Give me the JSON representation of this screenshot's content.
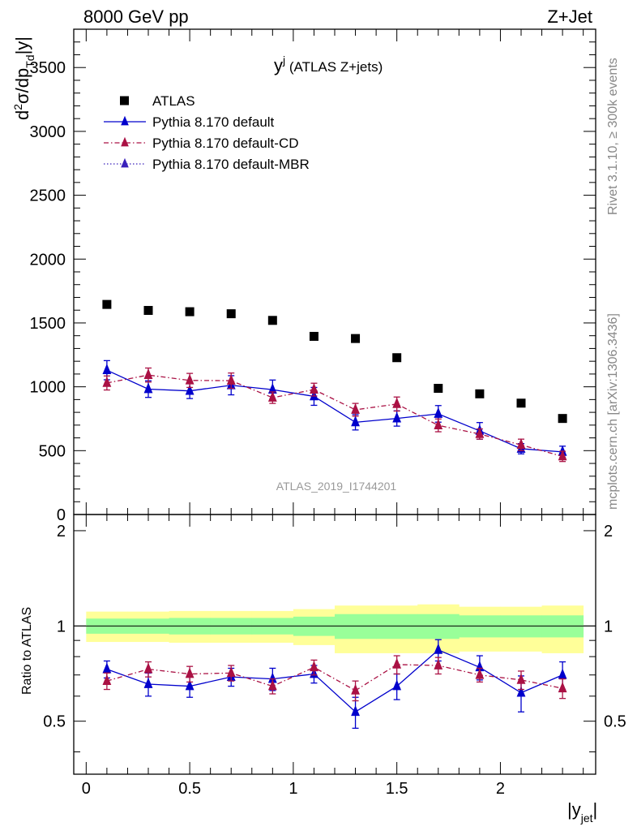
{
  "header": {
    "left": "8000 GeV pp",
    "right": "Z+Jet"
  },
  "side": {
    "rivet": "Rivet 3.1.10, ≥ 300k events",
    "mcplots": "mcplots.cern.ch [arXiv:1306.3436]"
  },
  "watermark": "ATLAS_2019_I1744201",
  "chart_data": [
    {
      "type": "scatter",
      "title": "y^j (ATLAS Z+jets)",
      "title_main": "y",
      "title_sup": "j",
      "title_rest": " (ATLAS Z+jets)",
      "ylabel": "d²σ/dp_Td|y|",
      "ylabel_parts": {
        "d": "d",
        "sup2": "2",
        "sigma": "σ/dp",
        "subT": "T",
        "subd": "d",
        "abs": "|y|"
      },
      "xlim": [
        -0.06,
        2.46
      ],
      "ylim": [
        0,
        3800
      ],
      "yticks": [
        0,
        500,
        1000,
        1500,
        2000,
        2500,
        3000,
        3500
      ],
      "ytick_labels": [
        "0",
        "500",
        "1000",
        "1500",
        "2000",
        "2500",
        "3000",
        "3500"
      ],
      "legend_position": "top-left",
      "x": [
        0.1,
        0.3,
        0.5,
        0.7,
        0.9,
        1.1,
        1.3,
        1.5,
        1.7,
        1.9,
        2.1,
        2.3
      ],
      "series": [
        {
          "name": "ATLAS",
          "color": "#000000",
          "marker": "square",
          "values": [
            1645,
            1598,
            1588,
            1572,
            1520,
            1395,
            1378,
            1228,
            988,
            945,
            872,
            752
          ]
        },
        {
          "name": "Pythia 8.170 default",
          "color": "#0000cc",
          "marker": "triangle",
          "line": "solid",
          "values": [
            1130,
            982,
            968,
            1012,
            978,
            925,
            722,
            752,
            788,
            655,
            515,
            490
          ],
          "errors": [
            75,
            65,
            60,
            75,
            75,
            70,
            60,
            60,
            65,
            65,
            40,
            45
          ]
        },
        {
          "name": "Pythia 8.170 default-CD",
          "color": "#aa1144",
          "marker": "triangle",
          "line": "dashdot",
          "values": [
            1030,
            1092,
            1050,
            1048,
            915,
            978,
            820,
            865,
            698,
            630,
            545,
            455
          ],
          "errors": [
            55,
            55,
            55,
            60,
            45,
            50,
            50,
            55,
            50,
            40,
            45,
            40
          ]
        },
        {
          "name": "Pythia 8.170 default-MBR",
          "color": "#3a22bb",
          "marker": "triangle",
          "line": "dotted",
          "values": [],
          "errors": []
        }
      ]
    },
    {
      "type": "scatter",
      "xlabel": "|y_jet|",
      "xlabel_parts": {
        "main": "|y",
        "sub": "jet",
        "end": "|"
      },
      "ylabel": "Ratio to ATLAS",
      "xlim": [
        -0.06,
        2.46
      ],
      "ylim": [
        0.34,
        2.25
      ],
      "yticks": [
        0.5,
        1,
        2
      ],
      "ytick_labels": [
        "0.5",
        "1",
        "2"
      ],
      "xticks": [
        0,
        0.5,
        1,
        1.5,
        2
      ],
      "xtick_labels": [
        "0",
        "0.5",
        "1",
        "1.5",
        "2"
      ],
      "x": [
        0.1,
        0.3,
        0.5,
        0.7,
        0.9,
        1.1,
        1.3,
        1.5,
        1.7,
        1.9,
        2.1,
        2.3
      ],
      "bins": [
        0,
        0.2,
        0.4,
        0.6,
        0.8,
        1.0,
        1.2,
        1.4,
        1.6,
        1.8,
        2.0,
        2.2,
        2.4
      ],
      "band_stat": [
        [
          0.945,
          1.055
        ],
        [
          0.945,
          1.055
        ],
        [
          0.94,
          1.06
        ],
        [
          0.94,
          1.06
        ],
        [
          0.94,
          1.06
        ],
        [
          0.93,
          1.07
        ],
        [
          0.91,
          1.09
        ],
        [
          0.91,
          1.09
        ],
        [
          0.91,
          1.09
        ],
        [
          0.92,
          1.08
        ],
        [
          0.92,
          1.08
        ],
        [
          0.92,
          1.08
        ]
      ],
      "band_total": [
        [
          0.89,
          1.11
        ],
        [
          0.89,
          1.11
        ],
        [
          0.885,
          1.115
        ],
        [
          0.885,
          1.115
        ],
        [
          0.885,
          1.115
        ],
        [
          0.87,
          1.13
        ],
        [
          0.82,
          1.16
        ],
        [
          0.82,
          1.16
        ],
        [
          0.82,
          1.17
        ],
        [
          0.83,
          1.15
        ],
        [
          0.83,
          1.15
        ],
        [
          0.82,
          1.16
        ]
      ],
      "series": [
        {
          "name": "Pythia 8.170 default",
          "color": "#0000cc",
          "marker": "triangle",
          "line": "solid",
          "values": [
            0.73,
            0.655,
            0.645,
            0.69,
            0.68,
            0.705,
            0.535,
            0.645,
            0.84,
            0.74,
            0.615,
            0.7
          ],
          "errors": [
            0.045,
            0.055,
            0.05,
            0.045,
            0.055,
            0.045,
            0.06,
            0.06,
            0.065,
            0.065,
            0.08,
            0.07
          ]
        },
        {
          "name": "Pythia 8.170 default-CD",
          "color": "#aa1144",
          "marker": "triangle",
          "line": "dashdot",
          "values": [
            0.67,
            0.73,
            0.705,
            0.71,
            0.645,
            0.74,
            0.625,
            0.755,
            0.75,
            0.7,
            0.675,
            0.635
          ],
          "errors": [
            0.04,
            0.04,
            0.04,
            0.04,
            0.035,
            0.04,
            0.045,
            0.05,
            0.045,
            0.035,
            0.045,
            0.045
          ]
        }
      ]
    }
  ]
}
